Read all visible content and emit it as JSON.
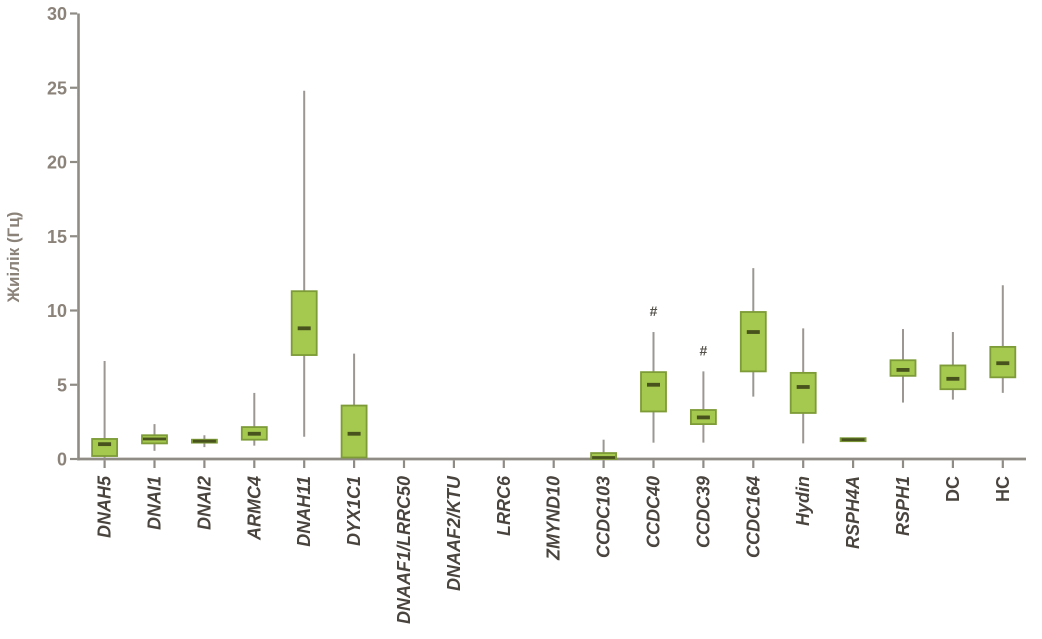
{
  "chart_data": {
    "type": "box",
    "title": "",
    "xlabel": "",
    "ylabel": "Жиілік (Гц)",
    "ylim": [
      0,
      30
    ],
    "yticks": [
      0,
      5,
      10,
      15,
      20,
      25,
      30
    ],
    "grid": false,
    "legend": false,
    "categories": [
      {
        "label": "DNAH5",
        "italic": true,
        "box": {
          "low": 0.05,
          "q1": 0.2,
          "median": 1.0,
          "q3": 1.35,
          "high": 6.6
        },
        "annotation": ""
      },
      {
        "label": "DNAI1",
        "italic": true,
        "box": {
          "low": 0.55,
          "q1": 1.05,
          "median": 1.35,
          "q3": 1.6,
          "high": 2.35
        },
        "annotation": ""
      },
      {
        "label": "DNAI2",
        "italic": true,
        "box": {
          "low": 0.8,
          "q1": 1.1,
          "median": 1.2,
          "q3": 1.3,
          "high": 1.6
        },
        "annotation": ""
      },
      {
        "label": "ARMC4",
        "italic": true,
        "box": {
          "low": 0.9,
          "q1": 1.3,
          "median": 1.7,
          "q3": 2.15,
          "high": 4.45
        },
        "annotation": ""
      },
      {
        "label": "DNAH11",
        "italic": true,
        "box": {
          "low": 1.5,
          "q1": 7.0,
          "median": 8.8,
          "q3": 11.3,
          "high": 24.8
        },
        "annotation": ""
      },
      {
        "label": "DYX1C1",
        "italic": true,
        "box": {
          "low": 0.05,
          "q1": 0.1,
          "median": 1.7,
          "q3": 3.6,
          "high": 7.1
        },
        "annotation": ""
      },
      {
        "label": "DNAAF1/LRRC50",
        "italic": true,
        "box": null,
        "annotation": ""
      },
      {
        "label": "DNAAF2/KTU",
        "italic": true,
        "box": null,
        "annotation": ""
      },
      {
        "label": "LRRC6",
        "italic": true,
        "box": null,
        "annotation": ""
      },
      {
        "label": "ZMYND10",
        "italic": true,
        "box": null,
        "annotation": ""
      },
      {
        "label": "CCDC103",
        "italic": true,
        "box": {
          "low": 0.0,
          "q1": 0.0,
          "median": 0.1,
          "q3": 0.4,
          "high": 1.3
        },
        "annotation": ""
      },
      {
        "label": "CCDC40",
        "italic": true,
        "box": {
          "low": 1.1,
          "q1": 3.2,
          "median": 5.0,
          "q3": 5.85,
          "high": 8.55
        },
        "annotation": "#"
      },
      {
        "label": "CCDC39",
        "italic": true,
        "box": {
          "low": 1.1,
          "q1": 2.35,
          "median": 2.8,
          "q3": 3.3,
          "high": 5.9
        },
        "annotation": "#"
      },
      {
        "label": "CCDC164",
        "italic": true,
        "box": {
          "low": 4.2,
          "q1": 5.9,
          "median": 8.55,
          "q3": 9.9,
          "high": 12.85
        },
        "annotation": ""
      },
      {
        "label": "Hydin",
        "italic": true,
        "box": {
          "low": 1.05,
          "q1": 3.1,
          "median": 4.85,
          "q3": 5.8,
          "high": 8.8
        },
        "annotation": ""
      },
      {
        "label": "RSPH4A",
        "italic": true,
        "box": {
          "low": 1.15,
          "q1": 1.2,
          "median": 1.3,
          "q3": 1.4,
          "high": 1.45
        },
        "annotation": ""
      },
      {
        "label": "RSPH1",
        "italic": true,
        "box": {
          "low": 3.8,
          "q1": 5.6,
          "median": 6.0,
          "q3": 6.65,
          "high": 8.75
        },
        "annotation": ""
      },
      {
        "label": "DC",
        "italic": false,
        "box": {
          "low": 4.0,
          "q1": 4.7,
          "median": 5.4,
          "q3": 6.3,
          "high": 8.55
        },
        "annotation": ""
      },
      {
        "label": "HC",
        "italic": false,
        "box": {
          "low": 4.45,
          "q1": 5.5,
          "median": 6.45,
          "q3": 7.55,
          "high": 11.7
        },
        "annotation": ""
      }
    ]
  },
  "colors": {
    "box_fill": "#a5c84f",
    "box_border": "#7d9b37",
    "median": "#47521d",
    "whisker": "#9b9793",
    "axis": "#8f8b85",
    "y_tick_label": "#8b837a",
    "y_axis_title": "#8b837a",
    "x_tick_label": "#4a443f",
    "annotation": "#54504a",
    "background": "#ffffff"
  }
}
